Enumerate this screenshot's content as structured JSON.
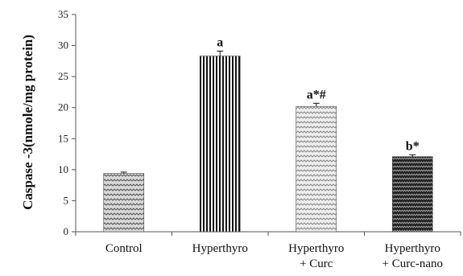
{
  "chart_data": {
    "type": "bar",
    "ylabel": "Caspase -3(nmole/mg protein)",
    "xlabel": "",
    "ylim": [
      0,
      35
    ],
    "yticks": [
      "0",
      "5",
      "10",
      "15",
      "20",
      "25",
      "30",
      "35"
    ],
    "categories": [
      {
        "lines": [
          "Control"
        ]
      },
      {
        "lines": [
          "Hyperthyro"
        ]
      },
      {
        "lines": [
          "Hyperthyro",
          "+ Curc"
        ]
      },
      {
        "lines": [
          "Hyperthyro",
          "+ Curc-nano"
        ]
      }
    ],
    "values": [
      9.4,
      28.3,
      20.2,
      12.1
    ],
    "errors": [
      0.2,
      0.8,
      0.5,
      0.3
    ],
    "annotations": [
      "",
      "a",
      "a*#",
      "b*"
    ],
    "patterns": [
      "wave-light",
      "vertical-stripes",
      "wave-light-sparse",
      "wave-dark"
    ]
  }
}
